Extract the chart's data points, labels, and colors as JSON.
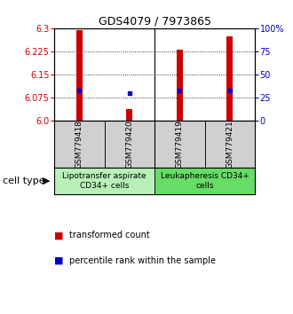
{
  "title": "GDS4079 / 7973865",
  "samples": [
    "GSM779418",
    "GSM779420",
    "GSM779419",
    "GSM779421"
  ],
  "red_values": [
    6.295,
    6.038,
    6.23,
    6.275
  ],
  "blue_values": [
    33,
    30,
    33,
    33
  ],
  "y_min": 6.0,
  "y_max": 6.3,
  "y_ticks_left": [
    6.0,
    6.075,
    6.15,
    6.225,
    6.3
  ],
  "y_ticks_right": [
    0,
    25,
    50,
    75,
    100
  ],
  "groups": [
    {
      "label": "Lipotransfer aspirate\nCD34+ cells",
      "samples": [
        0,
        1
      ],
      "color": "#b8f0b8"
    },
    {
      "label": "Leukapheresis CD34+\ncells",
      "samples": [
        2,
        3
      ],
      "color": "#66dd66"
    }
  ],
  "gsm_bg_color": "#d0d0d0",
  "bar_color": "#cc0000",
  "dot_color": "#0000cc",
  "bar_width": 0.12,
  "cell_type_label": "cell type",
  "legend_red": "transformed count",
  "legend_blue": "percentile rank within the sample",
  "ax_bg": "#ffffff",
  "left_label_color": "#cc0000",
  "right_label_color": "#0000cc",
  "title_fontsize": 9,
  "tick_fontsize": 7,
  "sample_fontsize": 6.5,
  "group_fontsize": 6.5,
  "legend_fontsize": 7
}
